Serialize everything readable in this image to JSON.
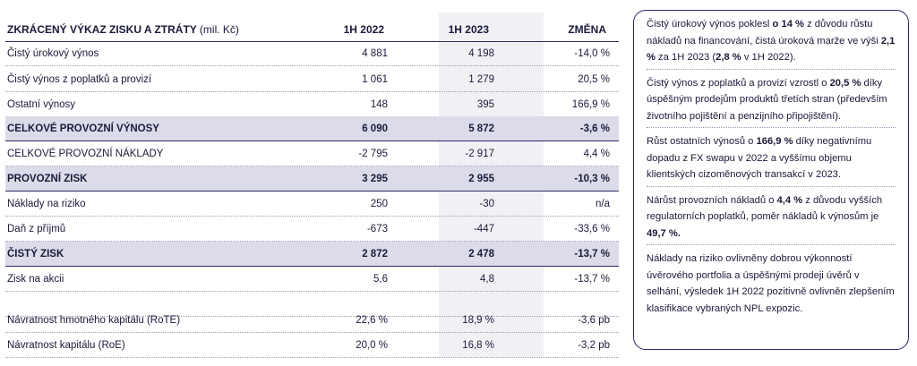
{
  "table": {
    "header": {
      "title": "ZKRÁCENÝ VÝKAZ ZISKU A ZTRÁTY",
      "unit": "(mil. Kč)",
      "col1": "1H 2022",
      "col2": "1H 2023",
      "col3": "ZMĚNA"
    },
    "rows": [
      {
        "label": "Čistý úrokový výnos",
        "v1": "4 881",
        "v2": "4 198",
        "v3": "-14,0 %"
      },
      {
        "label": "Čistý výnos z poplatků a provizí",
        "v1": "1 061",
        "v2": "1 279",
        "v3": "20,5 %"
      },
      {
        "label": "Ostatní výnosy",
        "v1": "148",
        "v2": "395",
        "v3": "166,9 %"
      },
      {
        "label": "CELKOVÉ PROVOZNÍ VÝNOSY",
        "v1": "6 090",
        "v2": "5 872",
        "v3": "-3,6 %"
      },
      {
        "label": "CELKOVÉ PROVOZNÍ NÁKLADY",
        "v1": "-2 795",
        "v2": "-2 917",
        "v3": "4,4 %"
      },
      {
        "label": "PROVOZNÍ ZISK",
        "v1": "3 295",
        "v2": "2 955",
        "v3": "-10,3 %"
      },
      {
        "label": "Náklady na riziko",
        "v1": "250",
        "v2": "-30",
        "v3": "n/a"
      },
      {
        "label": "Daň z příjmů",
        "v1": "-673",
        "v2": "-447",
        "v3": "-33,6 %"
      },
      {
        "label": "ČISTÝ ZISK",
        "v1": "2 872",
        "v2": "2 478",
        "v3": "-13,7 %"
      },
      {
        "label": "Zisk na akcii",
        "v1": "5,6",
        "v2": "4,8",
        "v3": "-13,7 %"
      },
      {
        "label": "Návratnost hmotného kapitálu (RoTE)",
        "v1": "22,6 %",
        "v2": "18,9 %",
        "v3": "-3,6 pb"
      },
      {
        "label": "Návratnost kapitálu (RoE)",
        "v1": "20,0 %",
        "v2": "16,8 %",
        "v3": "-3,2 pb"
      }
    ]
  },
  "notes": [
    {
      "parts": [
        "Čistý úrokový výnos poklesl ",
        "o 14 %",
        " z důvodu růstu nákladů na financování, čistá úroková marže ve výši ",
        "2,1 %",
        " za 1H 2023  (",
        "2,8 %",
        " v 1H 2022)."
      ]
    },
    {
      "parts": [
        "Čistý výnos z poplatků a provizí vzrostl o ",
        "20,5 %",
        " díky úspěšným prodejům produktů třetích stran (především životního pojištění a penzijního připojištění)."
      ]
    },
    {
      "parts": [
        "Růst ostatních výnosů o ",
        "166,9 %",
        " díky negativnímu dopadu z FX swapu v 2022 a vyššímu objemu klientských cizoměnových transakcí v 2023."
      ]
    },
    {
      "parts": [
        "Nárůst provozních nákladů o ",
        "4,4 %",
        " z důvodu vyšších regulatorních poplatků, poměr nákladů k výnosům je ",
        "49,7 %."
      ]
    },
    {
      "parts": [
        "Náklady na riziko ovlivněny dobrou výkonností úvěrového portfolia a úspěšnými prodeji úvěrů v selhání, výsledek 1H 2022 pozitivně ovlivněn zlepšením klasifikace vybraných NPL expozic."
      ]
    }
  ]
}
